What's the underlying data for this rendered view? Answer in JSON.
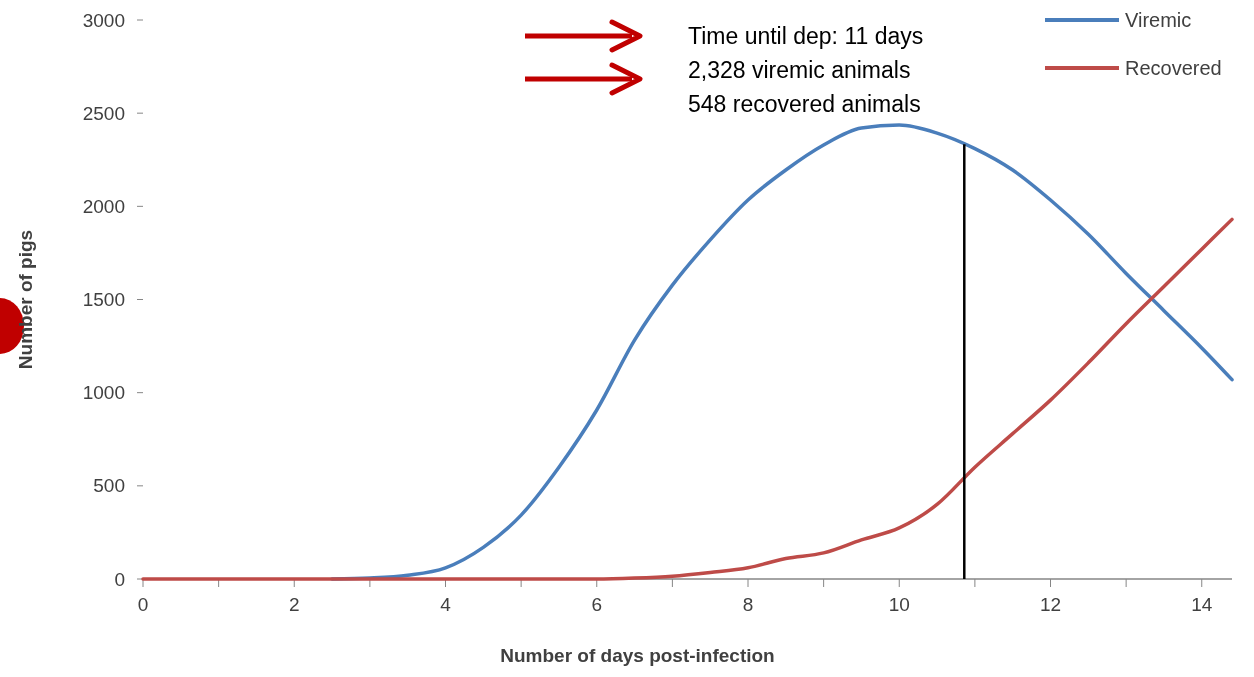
{
  "chart_data": {
    "type": "line",
    "xlabel": "Number of days post-infection",
    "ylabel": "Number of pigs",
    "x": [
      0,
      0.5,
      1,
      1.5,
      2,
      2.5,
      3,
      3.5,
      4,
      4.5,
      5,
      5.5,
      6,
      6.5,
      7,
      7.5,
      8,
      8.5,
      9,
      9.5,
      10,
      10.5,
      11,
      11.5,
      12,
      12.5,
      13,
      13.5,
      14,
      14.4
    ],
    "series": [
      {
        "name": "Viremic",
        "color": "#4a7ebb",
        "values": [
          null,
          null,
          null,
          null,
          null,
          0,
          5,
          20,
          60,
          170,
          343,
          600,
          907,
          1282,
          1577,
          1820,
          2034,
          2195,
          2329,
          2420,
          2436,
          2393,
          2310,
          2195,
          2034,
          1850,
          1640,
          1440,
          1240,
          1070
        ]
      },
      {
        "name": "Recovered",
        "color": "#be4b48",
        "values": [
          0,
          0,
          0,
          0,
          0,
          0,
          0,
          0,
          0,
          0,
          0,
          0,
          0,
          5,
          15,
          35,
          60,
          110,
          140,
          210,
          274,
          400,
          600,
          780,
          960,
          1160,
          1370,
          1570,
          1770,
          1930
        ]
      }
    ],
    "xlim": [
      0,
      14.4
    ],
    "xticks": [
      0,
      {
        "value": 1,
        "label": null
      },
      2,
      {
        "value": 3,
        "label": null
      },
      4,
      {
        "value": 5,
        "label": null
      },
      6,
      {
        "value": 7,
        "label": null
      },
      8,
      {
        "value": 9,
        "label": null
      },
      10,
      {
        "value": 11,
        "label": null
      },
      12,
      {
        "value": 13,
        "label": null
      },
      14
    ],
    "ylim": [
      0,
      3000
    ],
    "yticks": [
      0,
      500,
      1000,
      1500,
      2000,
      2500,
      3000
    ],
    "grid": false,
    "legend": "top right",
    "marker": "none",
    "line_style": "solid",
    "ref_lines": [
      {
        "axis": "x",
        "value": 10.86,
        "color": "#000000"
      }
    ],
    "annotations": [
      "Time until dep: 11 days",
      "2,328 viremic animals",
      "548 recovered animals"
    ]
  }
}
